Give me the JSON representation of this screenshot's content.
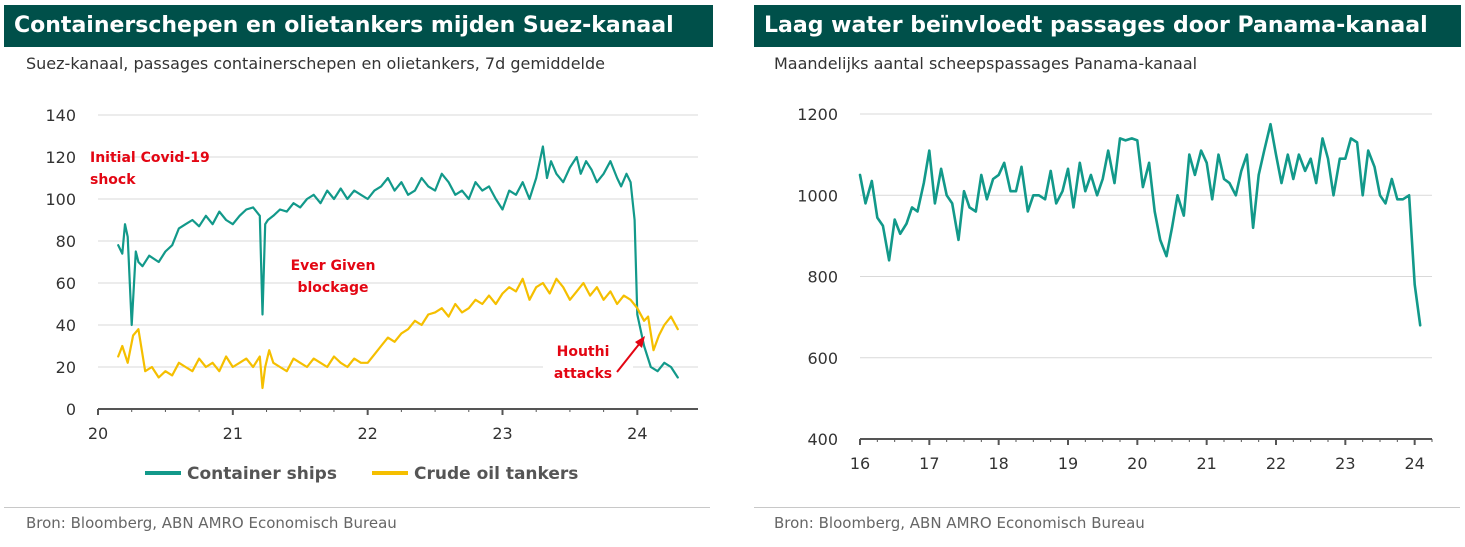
{
  "left": {
    "title": "Containerschepen en olietankers mijden Suez-kanaal",
    "subtitle": "Suez-kanaal, passages containerschepen en olietankers, 7d gemiddelde",
    "source": "Bron: Bloomberg, ABN AMRO Economisch Bureau",
    "annotations": [
      {
        "lines": [
          "Initial Covid-19",
          "shock"
        ],
        "color": "#e30613"
      },
      {
        "lines": [
          "Ever Given",
          "blockage"
        ],
        "color": "#e30613"
      },
      {
        "lines": [
          "Houthi",
          "attacks"
        ],
        "color": "#e30613"
      }
    ]
  },
  "right": {
    "title": "Laag water beïnvloedt passages door Panama-kanaal",
    "subtitle": "Maandelijks aantal scheepspassages Panama-kanaal",
    "source": "Bron:  Bloomberg, ABN AMRO Economisch Bureau"
  },
  "chart_data": [
    {
      "type": "line",
      "title": "Containerschepen en olietankers mijden Suez-kanaal",
      "subtitle": "Suez-kanaal, passages containerschepen en olietankers, 7d gemiddelde",
      "x_ticks": [
        "20",
        "21",
        "22",
        "23",
        "24"
      ],
      "y_ticks": [
        "0",
        "20",
        "40",
        "60",
        "80",
        "100",
        "120",
        "140"
      ],
      "xlim": [
        2020,
        2024.45
      ],
      "ylim": [
        0,
        140
      ],
      "grid": true,
      "legend_position": "bottom",
      "series": [
        {
          "name": "Container ships",
          "color": "#12998a",
          "x": [
            2020.15,
            2020.18,
            2020.2,
            2020.22,
            2020.25,
            2020.28,
            2020.3,
            2020.33,
            2020.38,
            2020.45,
            2020.5,
            2020.55,
            2020.6,
            2020.65,
            2020.7,
            2020.75,
            2020.8,
            2020.85,
            2020.9,
            2020.95,
            2021.0,
            2021.05,
            2021.1,
            2021.15,
            2021.2,
            2021.22,
            2021.24,
            2021.26,
            2021.3,
            2021.35,
            2021.4,
            2021.45,
            2021.5,
            2021.55,
            2021.6,
            2021.65,
            2021.7,
            2021.75,
            2021.8,
            2021.85,
            2021.9,
            2021.95,
            2022.0,
            2022.05,
            2022.1,
            2022.15,
            2022.2,
            2022.25,
            2022.3,
            2022.35,
            2022.4,
            2022.45,
            2022.5,
            2022.55,
            2022.6,
            2022.65,
            2022.7,
            2022.75,
            2022.8,
            2022.85,
            2022.9,
            2022.95,
            2023.0,
            2023.05,
            2023.1,
            2023.15,
            2023.2,
            2023.25,
            2023.3,
            2023.33,
            2023.36,
            2023.4,
            2023.45,
            2023.5,
            2023.55,
            2023.58,
            2023.62,
            2023.66,
            2023.7,
            2023.75,
            2023.8,
            2023.85,
            2023.88,
            2023.92,
            2023.95,
            2023.98,
            2024.0,
            2024.05,
            2024.1,
            2024.15,
            2024.2,
            2024.25,
            2024.3
          ],
          "values": [
            78,
            74,
            88,
            82,
            40,
            75,
            70,
            68,
            73,
            70,
            75,
            78,
            86,
            88,
            90,
            87,
            92,
            88,
            94,
            90,
            88,
            92,
            95,
            96,
            92,
            45,
            88,
            90,
            92,
            95,
            94,
            98,
            96,
            100,
            102,
            98,
            104,
            100,
            105,
            100,
            104,
            102,
            100,
            104,
            106,
            110,
            104,
            108,
            102,
            104,
            110,
            106,
            104,
            112,
            108,
            102,
            104,
            100,
            108,
            104,
            106,
            100,
            95,
            104,
            102,
            108,
            100,
            110,
            125,
            110,
            118,
            112,
            108,
            115,
            120,
            112,
            118,
            114,
            108,
            112,
            118,
            110,
            106,
            112,
            108,
            90,
            45,
            30,
            20,
            18,
            22,
            20,
            15
          ]
        },
        {
          "name": "Crude oil tankers",
          "color": "#f5bf00",
          "x": [
            2020.15,
            2020.18,
            2020.22,
            2020.26,
            2020.3,
            2020.35,
            2020.4,
            2020.45,
            2020.5,
            2020.55,
            2020.6,
            2020.65,
            2020.7,
            2020.75,
            2020.8,
            2020.85,
            2020.9,
            2020.95,
            2021.0,
            2021.05,
            2021.1,
            2021.15,
            2021.2,
            2021.22,
            2021.24,
            2021.27,
            2021.3,
            2021.35,
            2021.4,
            2021.45,
            2021.5,
            2021.55,
            2021.6,
            2021.65,
            2021.7,
            2021.75,
            2021.8,
            2021.85,
            2021.9,
            2021.95,
            2022.0,
            2022.05,
            2022.1,
            2022.15,
            2022.2,
            2022.25,
            2022.3,
            2022.35,
            2022.4,
            2022.45,
            2022.5,
            2022.55,
            2022.6,
            2022.65,
            2022.7,
            2022.75,
            2022.8,
            2022.85,
            2022.9,
            2022.95,
            2023.0,
            2023.05,
            2023.1,
            2023.15,
            2023.2,
            2023.25,
            2023.3,
            2023.35,
            2023.4,
            2023.45,
            2023.5,
            2023.55,
            2023.6,
            2023.65,
            2023.7,
            2023.75,
            2023.8,
            2023.85,
            2023.9,
            2023.95,
            2024.0,
            2024.05,
            2024.08,
            2024.12,
            2024.16,
            2024.2,
            2024.25,
            2024.3
          ],
          "values": [
            25,
            30,
            22,
            35,
            38,
            18,
            20,
            15,
            18,
            16,
            22,
            20,
            18,
            24,
            20,
            22,
            18,
            25,
            20,
            22,
            24,
            20,
            25,
            10,
            20,
            28,
            22,
            20,
            18,
            24,
            22,
            20,
            24,
            22,
            20,
            25,
            22,
            20,
            24,
            22,
            22,
            26,
            30,
            34,
            32,
            36,
            38,
            42,
            40,
            45,
            46,
            48,
            44,
            50,
            46,
            48,
            52,
            50,
            54,
            50,
            55,
            58,
            56,
            62,
            52,
            58,
            60,
            55,
            62,
            58,
            52,
            56,
            60,
            54,
            58,
            52,
            56,
            50,
            54,
            52,
            48,
            42,
            44,
            28,
            35,
            40,
            44,
            38
          ]
        }
      ]
    },
    {
      "type": "line",
      "title": "Laag water beïnvloedt passages door Panama-kanaal",
      "subtitle": "Maandelijks aantal scheepspassages Panama-kanaal",
      "x_ticks": [
        "16",
        "17",
        "18",
        "19",
        "20",
        "21",
        "22",
        "23",
        "24"
      ],
      "y_ticks": [
        "400",
        "600",
        "800",
        "1000",
        "1200"
      ],
      "xlim": [
        2016,
        2024.25
      ],
      "ylim": [
        400,
        1200
      ],
      "grid": true,
      "series": [
        {
          "color": "#12998a",
          "x": [
            2016.0,
            2016.08,
            2016.17,
            2016.25,
            2016.33,
            2016.42,
            2016.5,
            2016.58,
            2016.67,
            2016.75,
            2016.83,
            2016.92,
            2017.0,
            2017.08,
            2017.17,
            2017.25,
            2017.33,
            2017.42,
            2017.5,
            2017.58,
            2017.67,
            2017.75,
            2017.83,
            2017.92,
            2018.0,
            2018.08,
            2018.17,
            2018.25,
            2018.33,
            2018.42,
            2018.5,
            2018.58,
            2018.67,
            2018.75,
            2018.83,
            2018.92,
            2019.0,
            2019.08,
            2019.17,
            2019.25,
            2019.33,
            2019.42,
            2019.5,
            2019.58,
            2019.67,
            2019.75,
            2019.83,
            2019.92,
            2020.0,
            2020.08,
            2020.17,
            2020.25,
            2020.33,
            2020.42,
            2020.5,
            2020.58,
            2020.67,
            2020.75,
            2020.83,
            2020.92,
            2021.0,
            2021.08,
            2021.17,
            2021.25,
            2021.33,
            2021.42,
            2021.5,
            2021.58,
            2021.67,
            2021.75,
            2021.83,
            2021.92,
            2022.0,
            2022.08,
            2022.17,
            2022.25,
            2022.33,
            2022.42,
            2022.5,
            2022.58,
            2022.67,
            2022.75,
            2022.83,
            2022.92,
            2023.0,
            2023.08,
            2023.17,
            2023.25,
            2023.33,
            2023.42,
            2023.5,
            2023.58,
            2023.67,
            2023.75,
            2023.83,
            2023.92,
            2024.0,
            2024.08
          ],
          "values": [
            1050,
            980,
            1035,
            945,
            925,
            840,
            940,
            905,
            930,
            970,
            960,
            1030,
            1110,
            980,
            1065,
            1000,
            980,
            890,
            1010,
            970,
            960,
            1050,
            990,
            1040,
            1050,
            1080,
            1010,
            1010,
            1070,
            960,
            1000,
            1000,
            990,
            1060,
            980,
            1010,
            1065,
            970,
            1080,
            1010,
            1050,
            1000,
            1040,
            1110,
            1030,
            1140,
            1135,
            1140,
            1135,
            1020,
            1080,
            960,
            890,
            850,
            920,
            1000,
            950,
            1100,
            1050,
            1110,
            1080,
            990,
            1100,
            1040,
            1030,
            1000,
            1060,
            1100,
            920,
            1050,
            1110,
            1175,
            1100,
            1030,
            1100,
            1040,
            1100,
            1060,
            1090,
            1030,
            1140,
            1090,
            1000,
            1090,
            1090,
            1140,
            1130,
            1000,
            1110,
            1070,
            1000,
            980,
            1040,
            990,
            990,
            1000,
            780,
            680
          ]
        }
      ]
    }
  ]
}
